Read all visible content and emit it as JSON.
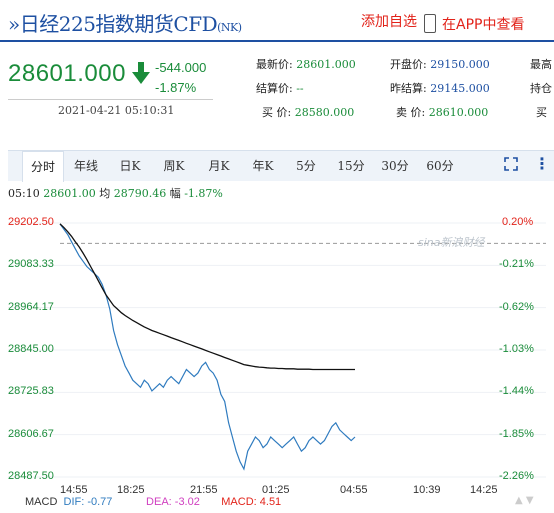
{
  "header": {
    "title": "日经225指数期货CFD",
    "code": "(NK)",
    "add_label": "添加自选",
    "app_label": "在APP中查看"
  },
  "quote": {
    "price": "28601.000",
    "change": "-544.000",
    "change_pct": "-1.87%",
    "time": "2021-04-21 05:10:31"
  },
  "stats": {
    "latest": {
      "label": "最新价:",
      "value": "28601.000"
    },
    "settle": {
      "label": "结算价:",
      "value": "--"
    },
    "bid": {
      "label": "买  价:",
      "value": "28580.000"
    },
    "open": {
      "label": "开盘价:",
      "value": "29150.000"
    },
    "prev_settle": {
      "label": "昨结算:",
      "value": "29145.000"
    },
    "ask": {
      "label": "卖  价:",
      "value": "28610.000"
    },
    "high_label": "最高",
    "hold_label": "持仓",
    "buy2_label": "买"
  },
  "tabs": [
    "分时",
    "年线",
    "日K",
    "周K",
    "月K",
    "年K",
    "5分",
    "15分",
    "30分",
    "60分"
  ],
  "active_tab": "分时",
  "info_line": {
    "time": "05:10",
    "price": "28601.00",
    "avg_label": "均",
    "avg": "28790.46",
    "range_label": "幅",
    "range": "-1.87%"
  },
  "watermark": "sina新浪财经",
  "macd": {
    "label": "MACD",
    "dif": "DIF: -0.77",
    "dea": "DEA: -3.02",
    "macd": "MACD: 4.51"
  },
  "colors": {
    "up": "#e2231a",
    "down": "#1a8c3a",
    "line": "#2f7bbf",
    "avg": "#111111",
    "brand": "#1e50a2"
  },
  "chart_data": {
    "type": "line",
    "y_ticks": [
      "29202.50",
      "29083.33",
      "28964.17",
      "28845.00",
      "28725.83",
      "28606.67",
      "28487.50"
    ],
    "pct_ticks": [
      "0.20%",
      "-0.21%",
      "-0.62%",
      "-1.03%",
      "-1.44%",
      "-1.85%",
      "-2.26%"
    ],
    "x_ticks": [
      "14:55",
      "18:25",
      "21:55",
      "01:25",
      "04:55",
      "10:39",
      "14:25"
    ],
    "ylim": [
      28487.5,
      29202.5
    ],
    "prev_settle": 29145,
    "series": [
      {
        "name": "price",
        "values": [
          29200,
          29185,
          29170,
          29150,
          29130,
          29110,
          29095,
          29080,
          29070,
          29060,
          29050,
          29030,
          29000,
          28960,
          28900,
          28860,
          28830,
          28800,
          28780,
          28760,
          28750,
          28740,
          28760,
          28750,
          28730,
          28740,
          28750,
          28740,
          28760,
          28770,
          28760,
          28750,
          28770,
          28790,
          28780,
          28770,
          28780,
          28800,
          28810,
          28790,
          28780,
          28760,
          28720,
          28700,
          28640,
          28600,
          28560,
          28530,
          28510,
          28560,
          28580,
          28600,
          28590,
          28570,
          28580,
          28600,
          28590,
          28580,
          28570,
          28580,
          28590,
          28600,
          28580,
          28560,
          28570,
          28590,
          28600,
          28590,
          28580,
          28590,
          28610,
          28630,
          28640,
          28620,
          28610,
          28600,
          28590,
          28600
        ]
      },
      {
        "name": "avg",
        "values": [
          29200,
          29190,
          29178,
          29165,
          29150,
          29135,
          29118,
          29100,
          29080,
          29060,
          29040,
          29020,
          29000,
          28985,
          28970,
          28960,
          28950,
          28942,
          28935,
          28928,
          28922,
          28916,
          28910,
          28905,
          28900,
          28896,
          28892,
          28888,
          28884,
          28880,
          28876,
          28872,
          28868,
          28864,
          28860,
          28856,
          28852,
          28848,
          28844,
          28840,
          28836,
          28832,
          28828,
          28824,
          28820,
          28816,
          28812,
          28808,
          28804,
          28802,
          28800,
          28798,
          28797,
          28796,
          28795,
          28794,
          28794,
          28793,
          28793,
          28792,
          28792,
          28792,
          28791,
          28791,
          28791,
          28791,
          28790,
          28790,
          28790,
          28790,
          28790,
          28790,
          28790,
          28790,
          28790,
          28790,
          28790,
          28790
        ]
      }
    ]
  }
}
